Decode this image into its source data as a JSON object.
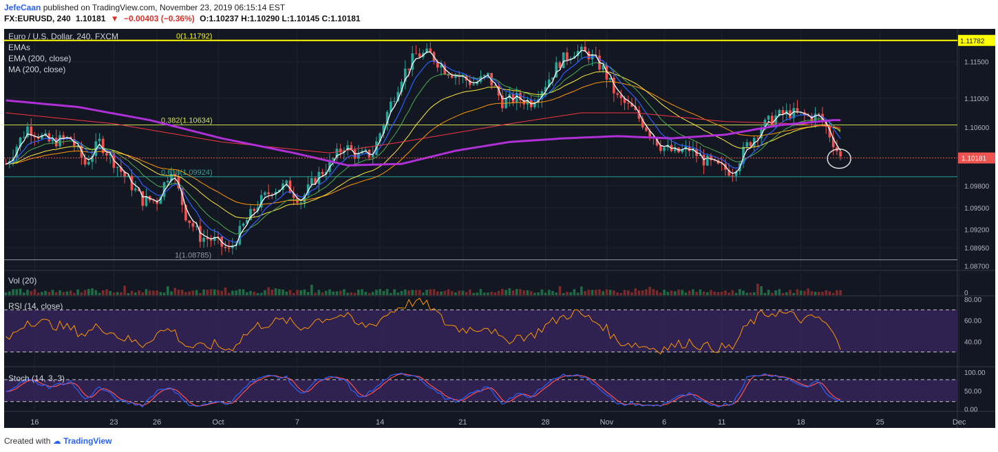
{
  "header": {
    "author": "JefeCaan",
    "published_text": "published on TradingView.com, November 23, 2019 06:15:14 EST",
    "symbol": "FX:EURUSD, 240",
    "last": "1.10181",
    "change": "−0.00403 (−0.36%)",
    "ohlc": "O:1.10237 H:1.10290 L:1.10145 C:1.10181"
  },
  "footer": {
    "created_with": "Created with",
    "brand": "TradingView"
  },
  "colors": {
    "background": "#131722",
    "up": "#26a69a",
    "down": "#ef5350",
    "ema_fast": "#ffffff",
    "ema_2": "#2962ff",
    "ema_3": "#4caf50",
    "ema_4": "#ffeb3b",
    "ema_5": "#ff9800",
    "ema_200": "#f23645",
    "ma_200": "#b030d8",
    "rsi": "#ff9800",
    "stoch_k": "#2962ff",
    "stoch_d": "#ff5252",
    "fib_top": "#ffff00",
    "fib_382": "#d4e157",
    "fib_618": "#26a69a"
  },
  "legend": {
    "title": "Euro / U.S. Dollar, 240, FXCM",
    "emas": "EMAs",
    "ema200": "EMA (200, close)",
    "ma200": "MA (200, close)"
  },
  "chart_data": [
    {
      "type": "candlestick",
      "title": "Euro / U.S. Dollar, 240, FXCM",
      "ylim": [
        1.0865,
        1.1195
      ],
      "y_ticks": [
        "1.11500",
        "1.11000",
        "1.10600",
        "1.09800",
        "1.09500",
        "1.09200",
        "1.08950",
        "1.08700"
      ],
      "x_ticks": [
        "16",
        "23",
        "26",
        "Oct",
        "7",
        "14",
        "21",
        "28",
        "Nov",
        "6",
        "11",
        "18",
        "25",
        "Dec"
      ],
      "last_price_label": "1.10181",
      "top_label": "1.11782",
      "fib_levels": [
        {
          "label": "0(1.11792)",
          "value": 1.11792
        },
        {
          "label": "0.382(1.10634)",
          "value": 1.10634
        },
        {
          "label": "0.618(1.09924)",
          "value": 1.09924
        },
        {
          "label": "1(1.08785)",
          "value": 1.08785
        }
      ],
      "close_path": [
        [
          0,
          1.101
        ],
        [
          6,
          1.106
        ],
        [
          12,
          1.104
        ],
        [
          18,
          1.1045
        ],
        [
          22,
          1.101
        ],
        [
          26,
          1.104
        ],
        [
          32,
          1.1
        ],
        [
          38,
          1.096
        ],
        [
          42,
          1.096
        ],
        [
          46,
          1.1005
        ],
        [
          50,
          1.094
        ],
        [
          54,
          1.091
        ],
        [
          58,
          1.0905
        ],
        [
          62,
          1.089
        ],
        [
          66,
          1.0925
        ],
        [
          70,
          1.0955
        ],
        [
          74,
          1.0975
        ],
        [
          78,
          1.098
        ],
        [
          82,
          1.096
        ],
        [
          86,
          1.099
        ],
        [
          90,
          1.101
        ],
        [
          94,
          1.1035
        ],
        [
          98,
          1.102
        ],
        [
          102,
          1.1025
        ],
        [
          106,
          1.108
        ],
        [
          110,
          1.113
        ],
        [
          114,
          1.116
        ],
        [
          118,
          1.116
        ],
        [
          122,
          1.114
        ],
        [
          126,
          1.113
        ],
        [
          130,
          1.112
        ],
        [
          134,
          1.113
        ],
        [
          138,
          1.1095
        ],
        [
          142,
          1.11
        ],
        [
          146,
          1.1095
        ],
        [
          150,
          1.112
        ],
        [
          154,
          1.115
        ],
        [
          158,
          1.1165
        ],
        [
          162,
          1.116
        ],
        [
          166,
          1.114
        ],
        [
          170,
          1.11
        ],
        [
          174,
          1.1085
        ],
        [
          178,
          1.106
        ],
        [
          182,
          1.1035
        ],
        [
          186,
          1.1025
        ],
        [
          190,
          1.103
        ],
        [
          194,
          1.1015
        ],
        [
          198,
          1.1005
        ],
        [
          202,
          1.1
        ],
        [
          206,
          1.1035
        ],
        [
          210,
          1.106
        ],
        [
          214,
          1.1075
        ],
        [
          218,
          1.108
        ],
        [
          222,
          1.1075
        ],
        [
          226,
          1.1075
        ],
        [
          228,
          1.106
        ],
        [
          230,
          1.104
        ],
        [
          232,
          1.1018
        ]
      ],
      "ma200_path": [
        [
          0,
          1.1097
        ],
        [
          20,
          1.1088
        ],
        [
          40,
          1.107
        ],
        [
          60,
          1.1045
        ],
        [
          80,
          1.1025
        ],
        [
          95,
          1.1008
        ],
        [
          110,
          1.101
        ],
        [
          125,
          1.1028
        ],
        [
          140,
          1.104
        ],
        [
          155,
          1.1045
        ],
        [
          170,
          1.1048
        ],
        [
          185,
          1.1045
        ],
        [
          200,
          1.105
        ],
        [
          215,
          1.1063
        ],
        [
          230,
          1.107
        ]
      ],
      "ema200_path": [
        [
          0,
          1.108
        ],
        [
          30,
          1.1065
        ],
        [
          60,
          1.104
        ],
        [
          90,
          1.1025
        ],
        [
          110,
          1.104
        ],
        [
          140,
          1.1065
        ],
        [
          160,
          1.108
        ],
        [
          175,
          1.108
        ],
        [
          200,
          1.1068
        ],
        [
          220,
          1.1065
        ],
        [
          232,
          1.106
        ]
      ],
      "last_bar": 232,
      "total_bars": 265
    },
    {
      "type": "bar",
      "title": "Vol (20)",
      "y_ticks": [
        "0"
      ]
    },
    {
      "type": "line",
      "title": "RSI (14, close)",
      "y_ticks": [
        "80.00",
        "60.00",
        "40.00"
      ],
      "bands": [
        30,
        70
      ],
      "ylim": [
        20,
        82
      ],
      "values": [
        [
          0,
          40
        ],
        [
          6,
          60
        ],
        [
          12,
          57
        ],
        [
          18,
          52
        ],
        [
          22,
          47
        ],
        [
          26,
          55
        ],
        [
          32,
          44
        ],
        [
          38,
          37
        ],
        [
          42,
          48
        ],
        [
          46,
          52
        ],
        [
          50,
          36
        ],
        [
          54,
          34
        ],
        [
          58,
          37
        ],
        [
          62,
          32
        ],
        [
          66,
          45
        ],
        [
          70,
          55
        ],
        [
          74,
          58
        ],
        [
          78,
          60
        ],
        [
          82,
          52
        ],
        [
          86,
          60
        ],
        [
          90,
          63
        ],
        [
          94,
          65
        ],
        [
          98,
          55
        ],
        [
          102,
          56
        ],
        [
          106,
          66
        ],
        [
          110,
          74
        ],
        [
          114,
          78
        ],
        [
          118,
          73
        ],
        [
          122,
          58
        ],
        [
          126,
          52
        ],
        [
          130,
          52
        ],
        [
          134,
          55
        ],
        [
          138,
          40
        ],
        [
          142,
          45
        ],
        [
          146,
          45
        ],
        [
          150,
          55
        ],
        [
          154,
          62
        ],
        [
          158,
          68
        ],
        [
          162,
          62
        ],
        [
          166,
          55
        ],
        [
          170,
          40
        ],
        [
          174,
          38
        ],
        [
          178,
          35
        ],
        [
          182,
          33
        ],
        [
          186,
          36
        ],
        [
          190,
          40
        ],
        [
          194,
          35
        ],
        [
          198,
          34
        ],
        [
          202,
          34
        ],
        [
          206,
          55
        ],
        [
          210,
          65
        ],
        [
          214,
          68
        ],
        [
          218,
          65
        ],
        [
          222,
          60
        ],
        [
          226,
          63
        ],
        [
          228,
          55
        ],
        [
          230,
          48
        ],
        [
          232,
          30
        ]
      ]
    },
    {
      "type": "line",
      "title": "Stoch (14, 3, 3)",
      "y_ticks": [
        "100.00",
        "50.00",
        "0.00"
      ],
      "bands": [
        20,
        80
      ],
      "ylim": [
        -5,
        108
      ],
      "values": [
        [
          0,
          50
        ],
        [
          6,
          80
        ],
        [
          12,
          60
        ],
        [
          18,
          75
        ],
        [
          22,
          25
        ],
        [
          26,
          60
        ],
        [
          32,
          20
        ],
        [
          38,
          10
        ],
        [
          42,
          50
        ],
        [
          46,
          60
        ],
        [
          50,
          15
        ],
        [
          54,
          8
        ],
        [
          58,
          20
        ],
        [
          62,
          10
        ],
        [
          66,
          60
        ],
        [
          70,
          85
        ],
        [
          74,
          90
        ],
        [
          78,
          85
        ],
        [
          82,
          40
        ],
        [
          86,
          75
        ],
        [
          90,
          85
        ],
        [
          94,
          80
        ],
        [
          98,
          30
        ],
        [
          102,
          50
        ],
        [
          106,
          85
        ],
        [
          110,
          95
        ],
        [
          114,
          92
        ],
        [
          118,
          60
        ],
        [
          122,
          30
        ],
        [
          126,
          20
        ],
        [
          130,
          45
        ],
        [
          134,
          60
        ],
        [
          138,
          15
        ],
        [
          142,
          40
        ],
        [
          146,
          30
        ],
        [
          150,
          70
        ],
        [
          154,
          90
        ],
        [
          158,
          95
        ],
        [
          162,
          80
        ],
        [
          166,
          50
        ],
        [
          170,
          10
        ],
        [
          174,
          15
        ],
        [
          178,
          8
        ],
        [
          182,
          10
        ],
        [
          186,
          30
        ],
        [
          190,
          40
        ],
        [
          194,
          15
        ],
        [
          198,
          10
        ],
        [
          202,
          15
        ],
        [
          206,
          85
        ],
        [
          210,
          95
        ],
        [
          214,
          92
        ],
        [
          218,
          80
        ],
        [
          222,
          60
        ],
        [
          226,
          75
        ],
        [
          228,
          40
        ],
        [
          230,
          30
        ],
        [
          232,
          20
        ]
      ]
    }
  ]
}
